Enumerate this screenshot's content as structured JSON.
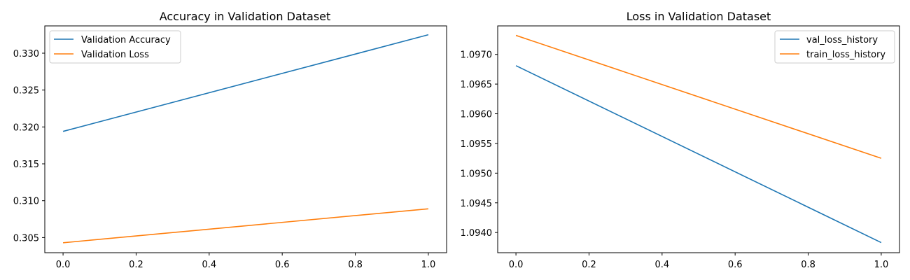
{
  "chart_data": [
    {
      "type": "line",
      "title": "Accuracy in Validation Dataset",
      "xlabel": "",
      "ylabel": "",
      "xlim": [
        -0.05,
        1.05
      ],
      "ylim": [
        0.30295,
        0.3337
      ],
      "xticks": [
        0.0,
        0.2,
        0.4,
        0.6,
        0.8,
        1.0
      ],
      "xtick_labels": [
        "0.0",
        "0.2",
        "0.4",
        "0.6",
        "0.8",
        "1.0"
      ],
      "yticks": [
        0.305,
        0.31,
        0.315,
        0.32,
        0.325,
        0.33
      ],
      "ytick_labels": [
        "0.305",
        "0.310",
        "0.315",
        "0.320",
        "0.325",
        "0.330"
      ],
      "legend_position": "upper-left",
      "grid": false,
      "series": [
        {
          "name": "Validation Accuracy",
          "color": "#1f77b4",
          "x": [
            0,
            1
          ],
          "values": [
            0.3194,
            0.3325
          ]
        },
        {
          "name": "Validation Loss",
          "color": "#ff7f0e",
          "x": [
            0,
            1
          ],
          "values": [
            0.3043,
            0.3089
          ]
        }
      ]
    },
    {
      "type": "line",
      "title": "Loss in Validation Dataset",
      "xlabel": "",
      "ylabel": "",
      "xlim": [
        -0.05,
        1.05
      ],
      "ylim": [
        1.09366,
        1.09748
      ],
      "xticks": [
        0.0,
        0.2,
        0.4,
        0.6,
        0.8,
        1.0
      ],
      "xtick_labels": [
        "0.0",
        "0.2",
        "0.4",
        "0.6",
        "0.8",
        "1.0"
      ],
      "yticks": [
        1.094,
        1.0945,
        1.095,
        1.0955,
        1.096,
        1.0965,
        1.097
      ],
      "ytick_labels": [
        "1.0940",
        "1.0945",
        "1.0950",
        "1.0955",
        "1.0960",
        "1.0965",
        "1.0970"
      ],
      "legend_position": "upper-right",
      "grid": false,
      "series": [
        {
          "name": "val_loss_history",
          "color": "#1f77b4",
          "x": [
            0,
            1
          ],
          "values": [
            1.09681,
            1.09383
          ]
        },
        {
          "name": "train_loss_history",
          "color": "#ff7f0e",
          "x": [
            0,
            1
          ],
          "values": [
            1.09732,
            1.09525
          ]
        }
      ]
    }
  ]
}
